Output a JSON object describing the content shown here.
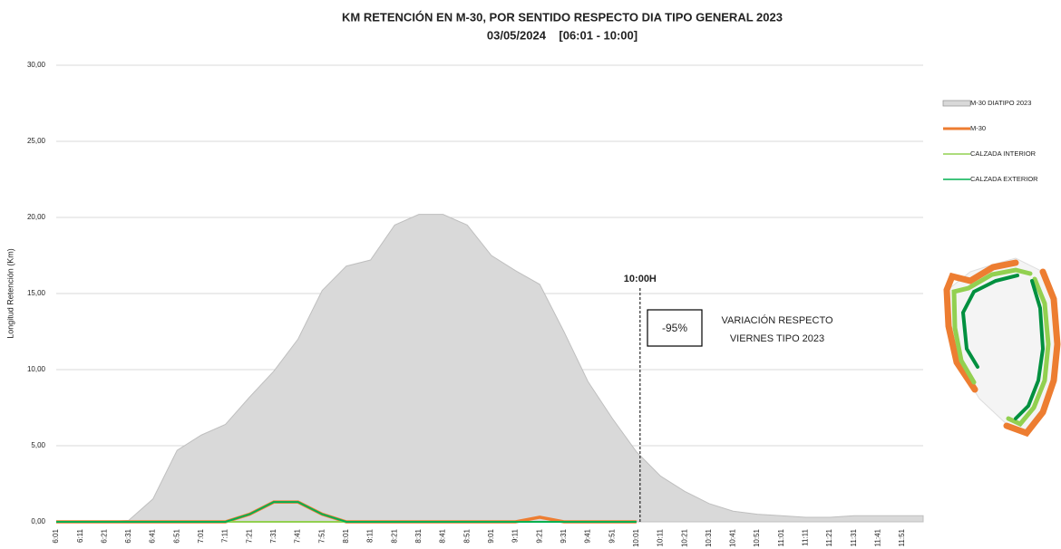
{
  "chart_data": {
    "type": "area-line",
    "title": "KM RETENCIÓN EN M-30, POR SENTIDO RESPECTO DIA TIPO GENERAL 2023",
    "subtitle": "03/05/2024    [06:01 - 10:00]",
    "y_label": "Longitud Retención (Km)",
    "categories": [
      "6:01",
      "6:11",
      "6:21",
      "6:31",
      "6:41",
      "6:51",
      "7:01",
      "7:11",
      "7:21",
      "7:31",
      "7:41",
      "7:51",
      "8:01",
      "8:11",
      "8:21",
      "8:31",
      "8:41",
      "8:51",
      "9:01",
      "9:11",
      "9:21",
      "9:31",
      "9:41",
      "9:51",
      "10:01",
      "10:11",
      "10:21",
      "10:31",
      "10:41",
      "10:51",
      "11:01",
      "11:11",
      "11:21",
      "11:31",
      "11:41",
      "11:51"
    ],
    "series": [
      {
        "name": "M-30 DIATIPO 2023",
        "color": "#d9d9d9",
        "kind": "area",
        "values": [
          0,
          0,
          0,
          0.1,
          1.5,
          4.7,
          5.7,
          6.4,
          8.2,
          9.9,
          12,
          15.2,
          16.8,
          17.2,
          19.5,
          20.2,
          20.2,
          19.5,
          17.5,
          16.5,
          15.6,
          12.5,
          9.2,
          6.8,
          4.6,
          3,
          2,
          1.2,
          0.7,
          0.5,
          0.4,
          0.3,
          0.3,
          0.4,
          0.4,
          0.4
        ]
      },
      {
        "name": "M-30",
        "color": "#ed7d31",
        "kind": "line",
        "values": [
          0,
          0,
          0,
          0,
          0,
          0,
          0,
          0,
          0.5,
          1.3,
          1.3,
          0.5,
          0,
          0,
          0,
          0,
          0,
          0,
          0,
          0,
          0.3,
          0,
          0,
          0,
          0,
          null,
          null,
          null,
          null,
          null,
          null,
          null,
          null,
          null,
          null,
          null
        ]
      },
      {
        "name": "CALZADA INTERIOR",
        "color": "#92d050",
        "kind": "line",
        "values": [
          0,
          0,
          0,
          0,
          0,
          0,
          0,
          0,
          0,
          0,
          0,
          0,
          0,
          0,
          0,
          0,
          0,
          0,
          0,
          0,
          0,
          0,
          0,
          0,
          0,
          null,
          null,
          null,
          null,
          null,
          null,
          null,
          null,
          null,
          null,
          null
        ]
      },
      {
        "name": "CALZADA EXTERIOR",
        "color": "#00b050",
        "kind": "line",
        "values": [
          0,
          0,
          0,
          0,
          0,
          0,
          0,
          0,
          0.5,
          1.3,
          1.3,
          0.5,
          0,
          0,
          0,
          0,
          0,
          0,
          0,
          0,
          0,
          0,
          0,
          0,
          0,
          null,
          null,
          null,
          null,
          null,
          null,
          null,
          null,
          null,
          null,
          null
        ]
      }
    ],
    "ylim": [
      0,
      30
    ],
    "yticks": [
      {
        "value": 0,
        "label": "0,00"
      },
      {
        "value": 5,
        "label": "5,00"
      },
      {
        "value": 10,
        "label": "10,00"
      },
      {
        "value": 15,
        "label": "15,00"
      },
      {
        "value": 20,
        "label": "20,00"
      },
      {
        "value": 25,
        "label": "25,00"
      },
      {
        "value": 30,
        "label": "30,00"
      }
    ],
    "grid": true,
    "annotations": {
      "marker": "10:00H",
      "variation": "-95%",
      "variation_text": [
        "VARIACIÓN RESPECTO",
        "VIERNES TIPO 2023"
      ]
    }
  }
}
